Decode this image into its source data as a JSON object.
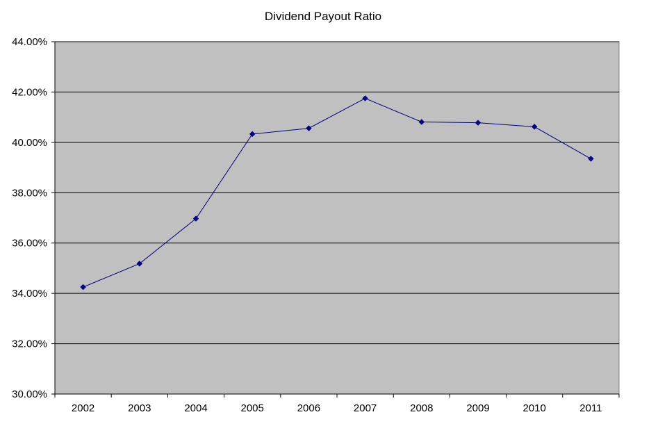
{
  "chart_data": {
    "type": "line",
    "title": "Dividend Payout Ratio",
    "xlabel": "",
    "ylabel": "",
    "categories": [
      "2002",
      "2003",
      "2004",
      "2005",
      "2006",
      "2007",
      "2008",
      "2009",
      "2010",
      "2011"
    ],
    "series": [
      {
        "values": [
          34.25,
          35.18,
          36.97,
          40.33,
          40.56,
          41.75,
          40.81,
          40.78,
          40.62,
          39.35
        ]
      }
    ],
    "ylim": [
      30,
      44
    ],
    "yticks": [
      "30.00%",
      "32.00%",
      "34.00%",
      "36.00%",
      "38.00%",
      "40.00%",
      "42.00%",
      "44.00%"
    ],
    "grid": true,
    "legend": "none",
    "colors": {
      "plot_background": "#c0c0c0",
      "line": "#000080",
      "marker": "#000080",
      "grid": "#000000"
    }
  }
}
